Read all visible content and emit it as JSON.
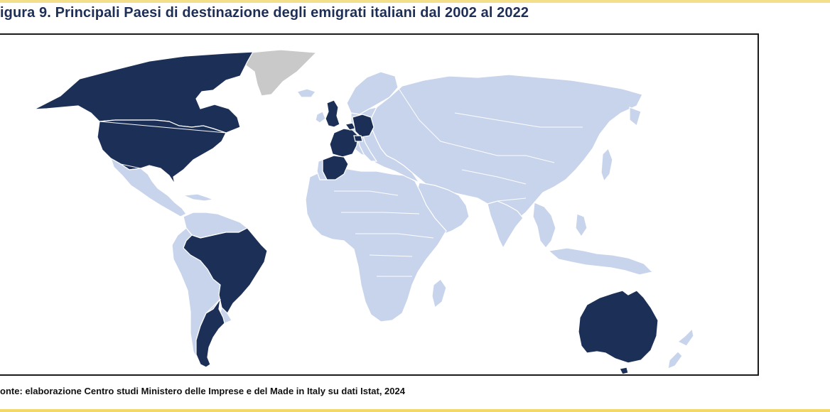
{
  "figure": {
    "title": "igura 9. Principali Paesi di destinazione degli emigrati italiani dal 2002 al 2022",
    "source": "onte: elaborazione Centro studi Ministero delle Imprese e del Made in Italy su dati Istat, 2024"
  },
  "map": {
    "colors": {
      "destination": "#1c3057",
      "other": "#c8d4ec",
      "no_data": "#c9c9c9",
      "border": "#ffffff"
    },
    "highlighted_countries": [
      "Canada",
      "United States",
      "Brazil",
      "Argentina",
      "United Kingdom",
      "France",
      "Germany",
      "Switzerland",
      "Spain",
      "Belgium",
      "Australia"
    ]
  }
}
